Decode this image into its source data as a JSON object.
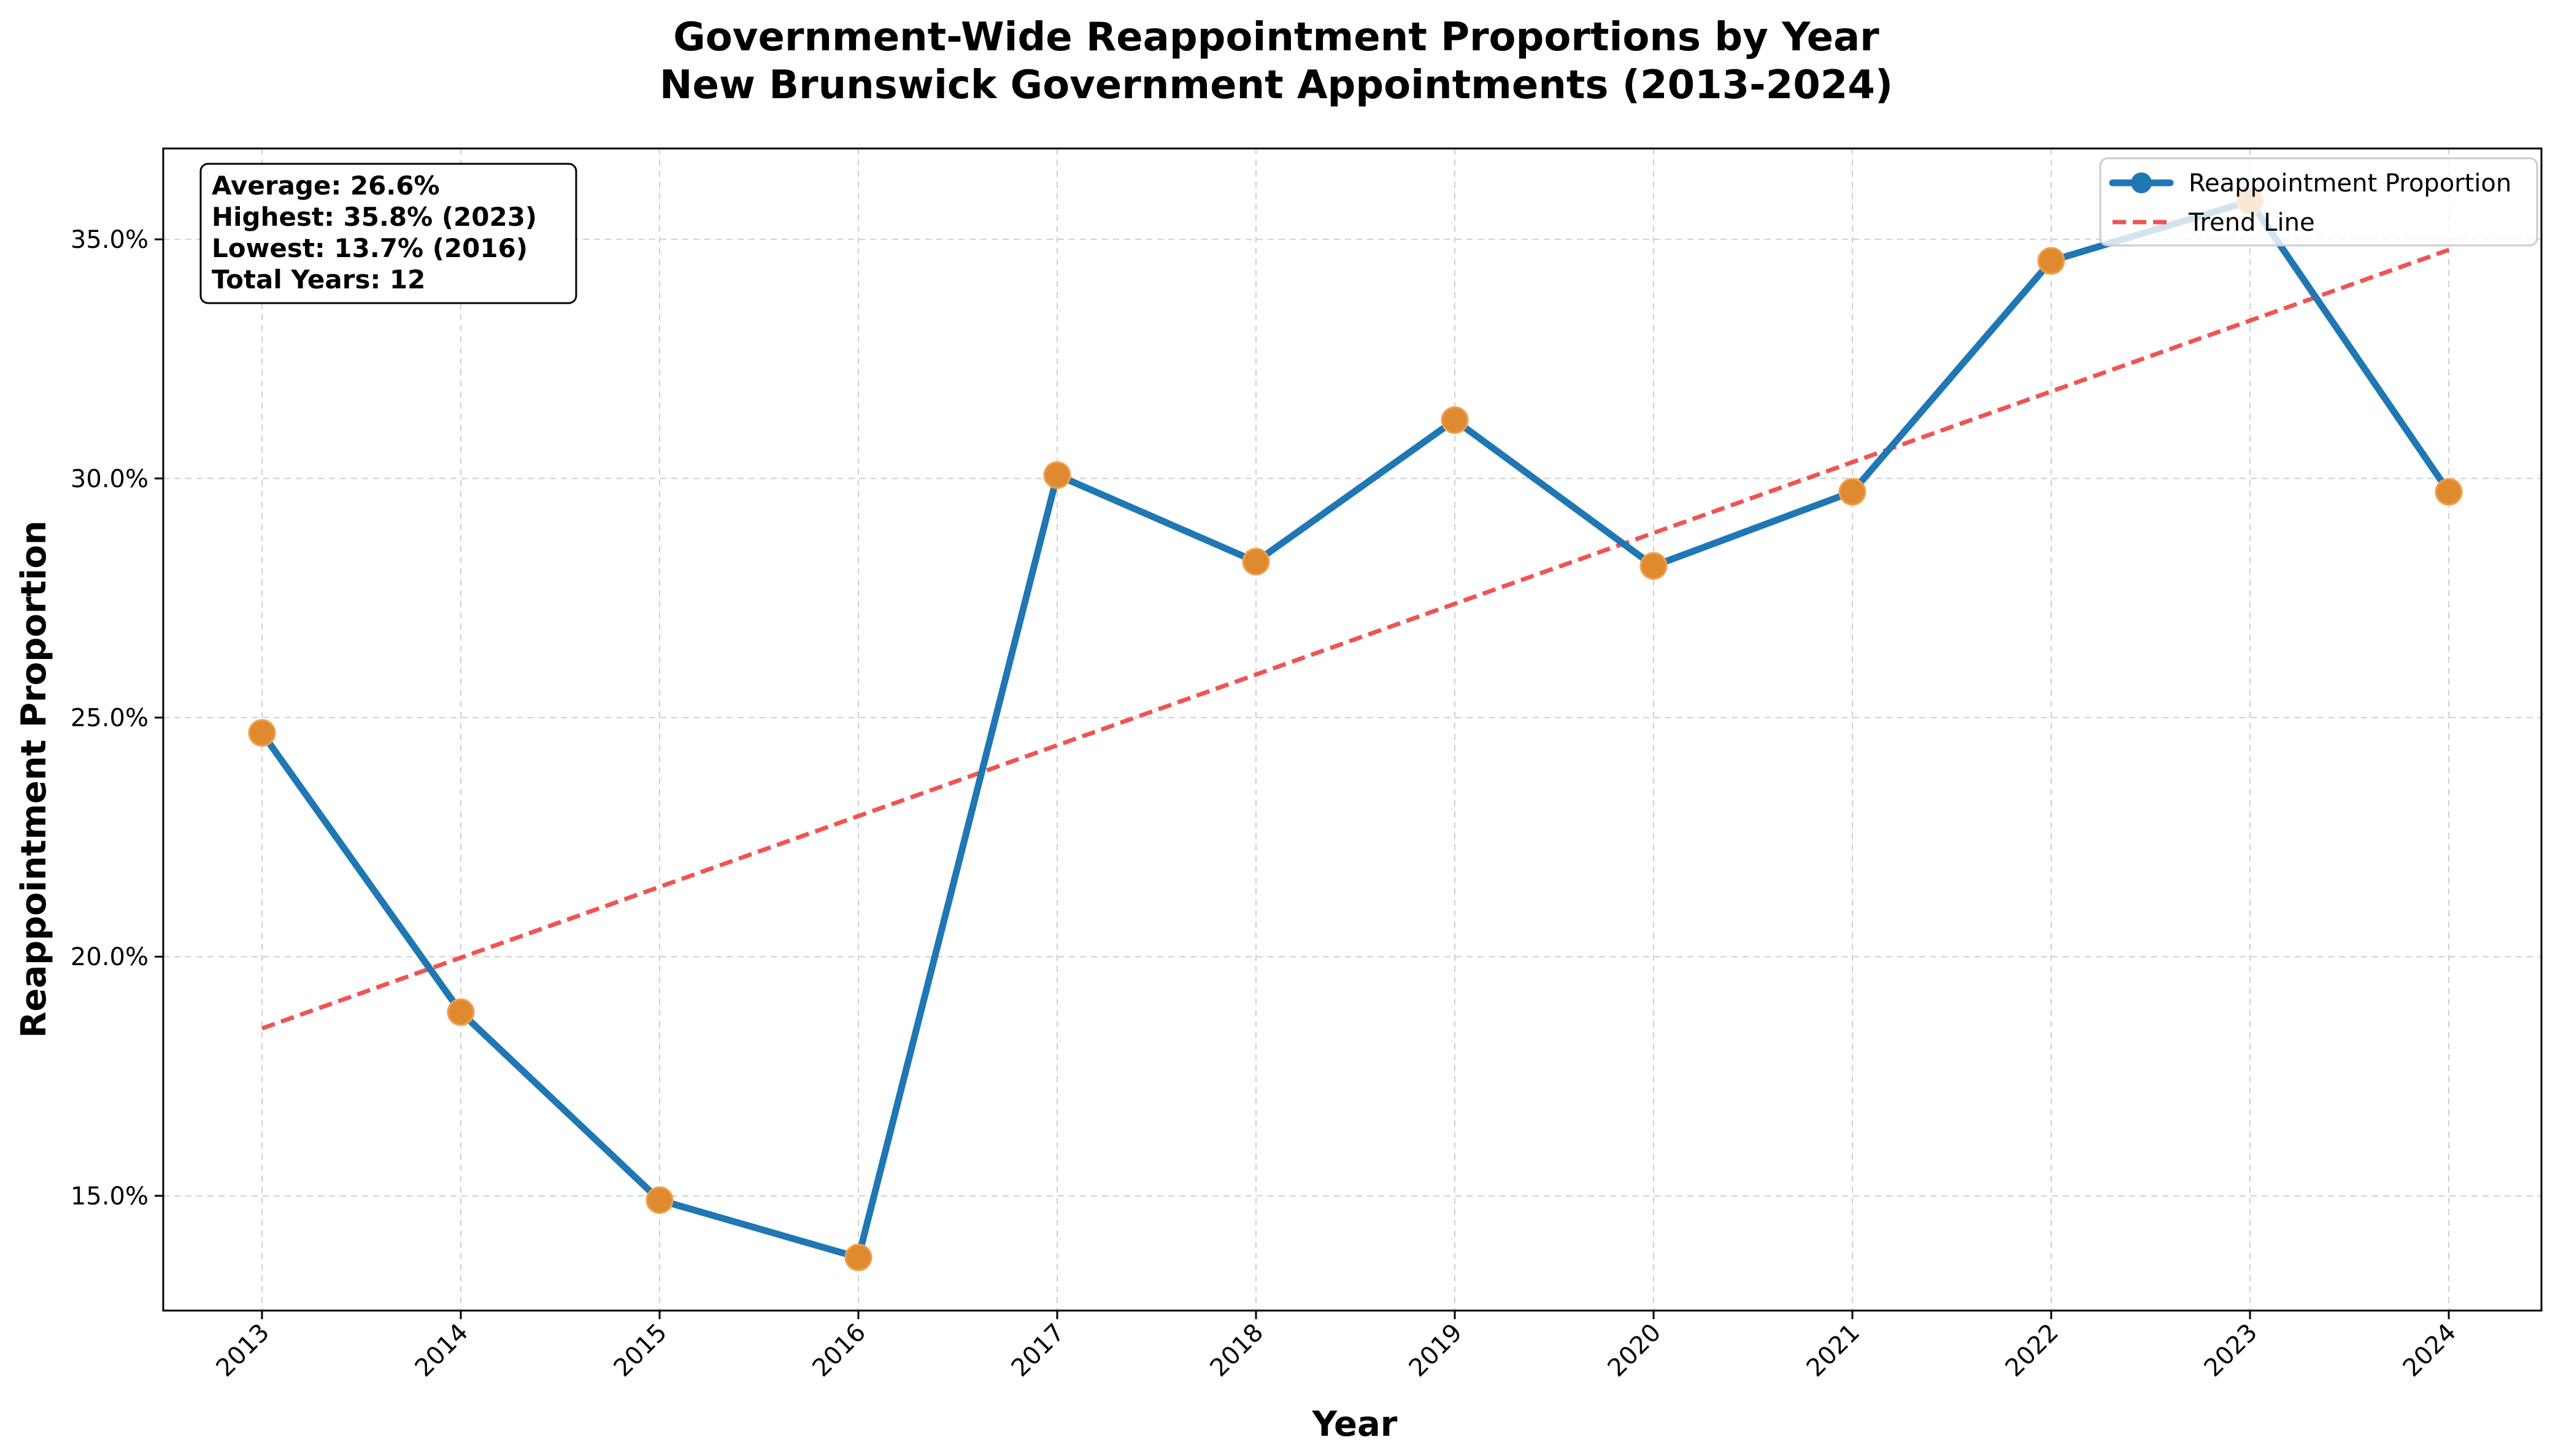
{
  "chart_data": {
    "type": "line",
    "title": "Government-Wide Reappointment Proportions by Year",
    "subtitle": "New Brunswick Government Appointments (2013-2024)",
    "xlabel": "Year",
    "ylabel": "Reappointment Proportion",
    "x": [
      "2013",
      "2014",
      "2015",
      "2016",
      "2017",
      "2018",
      "2019",
      "2020",
      "2021",
      "2022",
      "2023",
      "2024"
    ],
    "ylim": [
      0.126,
      0.369
    ],
    "yticks": [
      0.15,
      0.2,
      0.25,
      0.3,
      0.35
    ],
    "ytick_labels": [
      "15.0%",
      "20.0%",
      "25.0%",
      "30.0%",
      "35.0%"
    ],
    "grid": true,
    "legend_position": "top-right",
    "series": [
      {
        "name": "Reappointment Proportion",
        "style": "solid-with-markers",
        "color": "#1f77b4",
        "marker_color": "#e08a2f",
        "values": [
          0.2468,
          0.1884,
          0.1491,
          0.1371,
          0.3007,
          0.2826,
          0.3122,
          0.2817,
          0.2972,
          0.3455,
          0.358,
          0.2972
        ]
      },
      {
        "name": "Trend Line",
        "style": "dashed",
        "color": "#f04040",
        "values": [
          0.185,
          0.1998,
          0.2146,
          0.2294,
          0.2442,
          0.259,
          0.2738,
          0.2886,
          0.3034,
          0.3182,
          0.333,
          0.3478
        ]
      }
    ],
    "stats_box": {
      "average": "Average: 26.6%",
      "highest": "Highest: 35.8% (2023)",
      "lowest": "Lowest: 13.7% (2016)",
      "total_years": "Total Years: 12"
    }
  }
}
